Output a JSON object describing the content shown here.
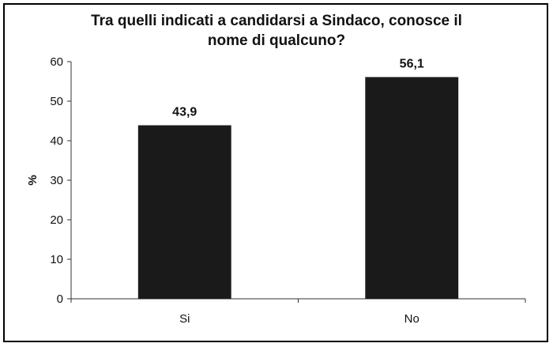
{
  "chart_data": {
    "type": "bar",
    "title_lines": [
      "Tra quelli indicati a candidarsi a Sindaco, conosce il",
      "nome di qualcuno?"
    ],
    "categories": [
      "Si",
      "No"
    ],
    "values": [
      43.9,
      56.1
    ],
    "value_labels": [
      "43,9",
      "56,1"
    ],
    "ylabel": "%",
    "ylim": [
      0,
      60
    ],
    "yticks": [
      0,
      10,
      20,
      30,
      40,
      50,
      60
    ],
    "grid": false,
    "bar_color": "#1a1a1a"
  }
}
